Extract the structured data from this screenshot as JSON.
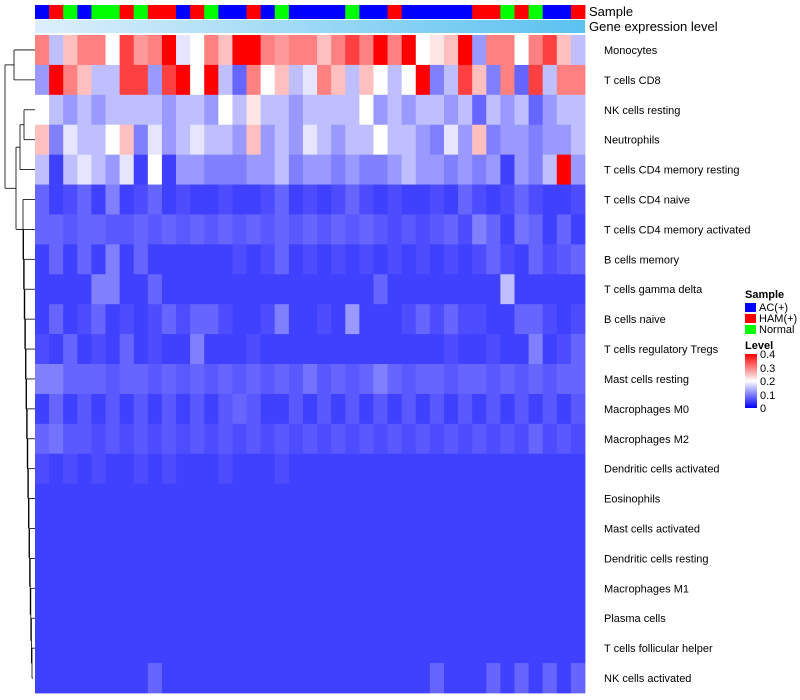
{
  "chart_data": {
    "type": "heatmap",
    "annotation_rows": [
      "Sample",
      "Gene expression level"
    ],
    "sample_groups": [
      "AC(+)",
      "HAM(+)",
      "Normal",
      "AC(+)",
      "Normal",
      "Normal",
      "HAM(+)",
      "Normal",
      "HAM(+)",
      "HAM(+)",
      "AC(+)",
      "HAM(+)",
      "Normal",
      "AC(+)",
      "AC(+)",
      "HAM(+)",
      "AC(+)",
      "Normal",
      "AC(+)",
      "AC(+)",
      "AC(+)",
      "AC(+)",
      "Normal",
      "AC(+)",
      "AC(+)",
      "HAM(+)",
      "AC(+)",
      "AC(+)",
      "AC(+)",
      "AC(+)",
      "AC(+)",
      "HAM(+)",
      "HAM(+)",
      "Normal",
      "HAM(+)",
      "Normal",
      "AC(+)",
      "AC(+)",
      "HAM(+)"
    ],
    "rows": [
      "Monocytes",
      "T cells CD8",
      "NK cells resting",
      "Neutrophils",
      "T cells CD4 memory resting",
      "T cells CD4 naive",
      "T cells CD4 memory activated",
      "B cells memory",
      "T cells gamma delta",
      "B cells naive",
      "T cells regulatory  Tregs",
      "Mast cells resting",
      "Macrophages M0",
      "Macrophages M2",
      "Dendritic cells activated",
      "Eosinophils",
      "Mast cells activated",
      "Dendritic cells resting",
      "Macrophages M1",
      "Plasma cells",
      "T cells follicular helper",
      "NK cells activated"
    ],
    "values": [
      [
        0.3,
        0.15,
        0.25,
        0.3,
        0.3,
        0.2,
        0.35,
        0.28,
        0.3,
        0.4,
        0.18,
        0.2,
        0.3,
        0.25,
        0.4,
        0.4,
        0.3,
        0.28,
        0.3,
        0.3,
        0.25,
        0.3,
        0.35,
        0.3,
        0.4,
        0.3,
        0.4,
        0.2,
        0.22,
        0.25,
        0.4,
        0.12,
        0.3,
        0.3,
        0.2,
        0.3,
        0.35,
        0.25,
        0.15
      ],
      [
        0.12,
        0.4,
        0.3,
        0.25,
        0.15,
        0.15,
        0.35,
        0.35,
        0.12,
        0.35,
        0.4,
        0.2,
        0.4,
        0.15,
        0.08,
        0.3,
        0.2,
        0.25,
        0.15,
        0.18,
        0.3,
        0.25,
        0.15,
        0.25,
        0.2,
        0.15,
        0.2,
        0.4,
        0.1,
        0.15,
        0.35,
        0.25,
        0.1,
        0.3,
        0.08,
        0.35,
        0.15,
        0.3,
        0.3
      ],
      [
        0.2,
        0.15,
        0.12,
        0.15,
        0.12,
        0.15,
        0.15,
        0.15,
        0.15,
        0.12,
        0.15,
        0.15,
        0.12,
        0.2,
        0.15,
        0.22,
        0.15,
        0.15,
        0.12,
        0.15,
        0.15,
        0.15,
        0.15,
        0.2,
        0.12,
        0.15,
        0.12,
        0.15,
        0.15,
        0.12,
        0.15,
        0.08,
        0.15,
        0.12,
        0.15,
        0.08,
        0.12,
        0.15,
        0.15
      ],
      [
        0.25,
        0.1,
        0.18,
        0.15,
        0.15,
        0.2,
        0.25,
        0.1,
        0.18,
        0.12,
        0.15,
        0.18,
        0.15,
        0.15,
        0.12,
        0.25,
        0.12,
        0.15,
        0.12,
        0.18,
        0.15,
        0.12,
        0.15,
        0.15,
        0.2,
        0.15,
        0.15,
        0.12,
        0.1,
        0.18,
        0.12,
        0.25,
        0.1,
        0.12,
        0.12,
        0.1,
        0.12,
        0.12,
        0.15
      ],
      [
        0.15,
        0.05,
        0.15,
        0.18,
        0.15,
        0.12,
        0.18,
        0.05,
        0.2,
        0.05,
        0.12,
        0.12,
        0.1,
        0.1,
        0.1,
        0.12,
        0.12,
        0.15,
        0.1,
        0.12,
        0.12,
        0.1,
        0.12,
        0.1,
        0.1,
        0.12,
        0.15,
        0.12,
        0.12,
        0.1,
        0.12,
        0.1,
        0.12,
        0.05,
        0.12,
        0.1,
        0.15,
        0.4,
        0.12
      ],
      [
        0.08,
        0.05,
        0.06,
        0.08,
        0.05,
        0.1,
        0.05,
        0.06,
        0.08,
        0.05,
        0.06,
        0.05,
        0.05,
        0.06,
        0.05,
        0.05,
        0.06,
        0.08,
        0.05,
        0.06,
        0.05,
        0.06,
        0.08,
        0.06,
        0.05,
        0.06,
        0.05,
        0.05,
        0.06,
        0.05,
        0.08,
        0.06,
        0.05,
        0.06,
        0.08,
        0.06,
        0.05,
        0.05,
        0.06
      ],
      [
        0.08,
        0.08,
        0.07,
        0.08,
        0.08,
        0.07,
        0.07,
        0.08,
        0.07,
        0.08,
        0.07,
        0.08,
        0.07,
        0.08,
        0.07,
        0.08,
        0.07,
        0.08,
        0.07,
        0.08,
        0.07,
        0.08,
        0.07,
        0.08,
        0.07,
        0.06,
        0.07,
        0.06,
        0.07,
        0.08,
        0.06,
        0.1,
        0.08,
        0.05,
        0.09,
        0.08,
        0.05,
        0.08,
        0.05
      ],
      [
        0.05,
        0.08,
        0.05,
        0.08,
        0.05,
        0.1,
        0.05,
        0.08,
        0.05,
        0.05,
        0.05,
        0.05,
        0.05,
        0.05,
        0.06,
        0.05,
        0.06,
        0.08,
        0.05,
        0.06,
        0.05,
        0.06,
        0.05,
        0.06,
        0.05,
        0.06,
        0.05,
        0.06,
        0.05,
        0.06,
        0.05,
        0.06,
        0.08,
        0.06,
        0.05,
        0.08,
        0.06,
        0.07,
        0.08
      ],
      [
        0.05,
        0.05,
        0.05,
        0.05,
        0.1,
        0.1,
        0.05,
        0.05,
        0.08,
        0.05,
        0.05,
        0.05,
        0.05,
        0.05,
        0.05,
        0.05,
        0.05,
        0.05,
        0.05,
        0.05,
        0.05,
        0.05,
        0.05,
        0.05,
        0.08,
        0.05,
        0.05,
        0.05,
        0.05,
        0.05,
        0.05,
        0.05,
        0.05,
        0.15,
        0.05,
        0.05,
        0.05,
        0.05,
        0.05
      ],
      [
        0.05,
        0.08,
        0.05,
        0.06,
        0.08,
        0.05,
        0.06,
        0.05,
        0.06,
        0.08,
        0.06,
        0.08,
        0.08,
        0.06,
        0.05,
        0.05,
        0.06,
        0.1,
        0.05,
        0.05,
        0.06,
        0.05,
        0.12,
        0.05,
        0.05,
        0.05,
        0.06,
        0.08,
        0.06,
        0.08,
        0.06,
        0.06,
        0.05,
        0.05,
        0.08,
        0.08,
        0.06,
        0.05,
        0.06
      ],
      [
        0.06,
        0.05,
        0.08,
        0.05,
        0.06,
        0.05,
        0.08,
        0.05,
        0.06,
        0.05,
        0.05,
        0.1,
        0.05,
        0.05,
        0.05,
        0.06,
        0.05,
        0.05,
        0.05,
        0.05,
        0.05,
        0.05,
        0.05,
        0.05,
        0.05,
        0.05,
        0.05,
        0.05,
        0.05,
        0.06,
        0.05,
        0.05,
        0.06,
        0.05,
        0.05,
        0.1,
        0.05,
        0.06,
        0.08
      ],
      [
        0.1,
        0.1,
        0.08,
        0.08,
        0.08,
        0.07,
        0.08,
        0.08,
        0.07,
        0.08,
        0.07,
        0.08,
        0.07,
        0.08,
        0.07,
        0.08,
        0.07,
        0.08,
        0.07,
        0.09,
        0.07,
        0.08,
        0.07,
        0.08,
        0.1,
        0.08,
        0.07,
        0.08,
        0.08,
        0.07,
        0.08,
        0.08,
        0.07,
        0.08,
        0.07,
        0.08,
        0.07,
        0.08,
        0.08
      ],
      [
        0.05,
        0.08,
        0.05,
        0.07,
        0.05,
        0.07,
        0.05,
        0.07,
        0.05,
        0.07,
        0.05,
        0.07,
        0.05,
        0.07,
        0.08,
        0.07,
        0.05,
        0.05,
        0.07,
        0.05,
        0.07,
        0.05,
        0.07,
        0.05,
        0.07,
        0.05,
        0.07,
        0.05,
        0.07,
        0.05,
        0.07,
        0.05,
        0.07,
        0.05,
        0.07,
        0.05,
        0.07,
        0.05,
        0.07
      ],
      [
        0.08,
        0.09,
        0.07,
        0.07,
        0.06,
        0.07,
        0.06,
        0.07,
        0.06,
        0.07,
        0.06,
        0.07,
        0.06,
        0.07,
        0.06,
        0.07,
        0.06,
        0.07,
        0.06,
        0.07,
        0.06,
        0.07,
        0.06,
        0.07,
        0.06,
        0.07,
        0.06,
        0.07,
        0.06,
        0.07,
        0.06,
        0.07,
        0.06,
        0.07,
        0.06,
        0.08,
        0.06,
        0.07,
        0.06
      ],
      [
        0.06,
        0.05,
        0.06,
        0.05,
        0.06,
        0.05,
        0.05,
        0.06,
        0.05,
        0.06,
        0.05,
        0.05,
        0.05,
        0.06,
        0.05,
        0.05,
        0.05,
        0.06,
        0.05,
        0.05,
        0.05,
        0.05,
        0.05,
        0.05,
        0.05,
        0.05,
        0.05,
        0.05,
        0.05,
        0.05,
        0.05,
        0.05,
        0.05,
        0.05,
        0.05,
        0.05,
        0.05,
        0.05,
        0.05
      ],
      [
        0.05,
        0.05,
        0.05,
        0.05,
        0.05,
        0.05,
        0.05,
        0.05,
        0.05,
        0.05,
        0.05,
        0.05,
        0.05,
        0.05,
        0.05,
        0.05,
        0.05,
        0.05,
        0.05,
        0.05,
        0.05,
        0.05,
        0.05,
        0.05,
        0.05,
        0.05,
        0.05,
        0.05,
        0.05,
        0.05,
        0.05,
        0.05,
        0.05,
        0.05,
        0.05,
        0.05,
        0.05,
        0.05,
        0.05
      ],
      [
        0.05,
        0.05,
        0.05,
        0.05,
        0.05,
        0.05,
        0.05,
        0.05,
        0.05,
        0.05,
        0.05,
        0.05,
        0.05,
        0.05,
        0.05,
        0.05,
        0.05,
        0.05,
        0.05,
        0.05,
        0.05,
        0.05,
        0.05,
        0.05,
        0.05,
        0.05,
        0.05,
        0.05,
        0.05,
        0.05,
        0.05,
        0.05,
        0.05,
        0.05,
        0.05,
        0.05,
        0.05,
        0.05,
        0.05
      ],
      [
        0.05,
        0.05,
        0.05,
        0.05,
        0.05,
        0.05,
        0.05,
        0.05,
        0.05,
        0.05,
        0.05,
        0.05,
        0.05,
        0.05,
        0.05,
        0.05,
        0.05,
        0.05,
        0.05,
        0.05,
        0.05,
        0.05,
        0.05,
        0.05,
        0.05,
        0.05,
        0.05,
        0.05,
        0.05,
        0.05,
        0.05,
        0.05,
        0.05,
        0.05,
        0.05,
        0.05,
        0.05,
        0.05,
        0.05
      ],
      [
        0.05,
        0.05,
        0.05,
        0.05,
        0.05,
        0.05,
        0.05,
        0.05,
        0.05,
        0.05,
        0.05,
        0.05,
        0.05,
        0.05,
        0.05,
        0.05,
        0.05,
        0.05,
        0.05,
        0.05,
        0.05,
        0.05,
        0.05,
        0.05,
        0.05,
        0.05,
        0.05,
        0.05,
        0.05,
        0.05,
        0.05,
        0.05,
        0.05,
        0.05,
        0.05,
        0.05,
        0.05,
        0.05,
        0.05
      ],
      [
        0.05,
        0.05,
        0.05,
        0.05,
        0.05,
        0.05,
        0.05,
        0.05,
        0.05,
        0.05,
        0.05,
        0.05,
        0.05,
        0.05,
        0.05,
        0.05,
        0.05,
        0.05,
        0.05,
        0.05,
        0.05,
        0.05,
        0.05,
        0.05,
        0.05,
        0.05,
        0.05,
        0.05,
        0.05,
        0.05,
        0.05,
        0.05,
        0.05,
        0.05,
        0.05,
        0.05,
        0.05,
        0.05,
        0.05
      ],
      [
        0.05,
        0.05,
        0.05,
        0.05,
        0.05,
        0.05,
        0.05,
        0.05,
        0.05,
        0.05,
        0.05,
        0.05,
        0.05,
        0.05,
        0.05,
        0.05,
        0.05,
        0.05,
        0.05,
        0.05,
        0.05,
        0.05,
        0.05,
        0.05,
        0.05,
        0.05,
        0.05,
        0.05,
        0.05,
        0.05,
        0.05,
        0.05,
        0.05,
        0.05,
        0.05,
        0.05,
        0.05,
        0.05,
        0.05
      ],
      [
        0.05,
        0.05,
        0.05,
        0.05,
        0.05,
        0.05,
        0.05,
        0.05,
        0.08,
        0.05,
        0.05,
        0.05,
        0.05,
        0.05,
        0.05,
        0.05,
        0.05,
        0.05,
        0.05,
        0.05,
        0.05,
        0.05,
        0.05,
        0.05,
        0.05,
        0.05,
        0.05,
        0.05,
        0.08,
        0.05,
        0.05,
        0.05,
        0.08,
        0.05,
        0.08,
        0.05,
        0.08,
        0.05,
        0.08
      ]
    ],
    "color_scale": {
      "low": "#0000FF",
      "mid": "#FFFFFF",
      "high": "#FF0000",
      "min": 0,
      "mid_value": 0.2,
      "max": 0.4
    },
    "legend": {
      "sample_title": "Sample",
      "sample_entries": [
        {
          "label": "AC(+)",
          "color": "#0000FF"
        },
        {
          "label": "HAM(+)",
          "color": "#FF0000"
        },
        {
          "label": "Normal",
          "color": "#00FF00"
        }
      ],
      "level_title": "Level",
      "level_ticks": [
        "0.4",
        "0.3",
        "0.2",
        "0.1",
        "0"
      ],
      "placement": "right"
    },
    "expression_annotation_colors": [
      "#DDEFFB",
      "#5BC2F0"
    ]
  }
}
